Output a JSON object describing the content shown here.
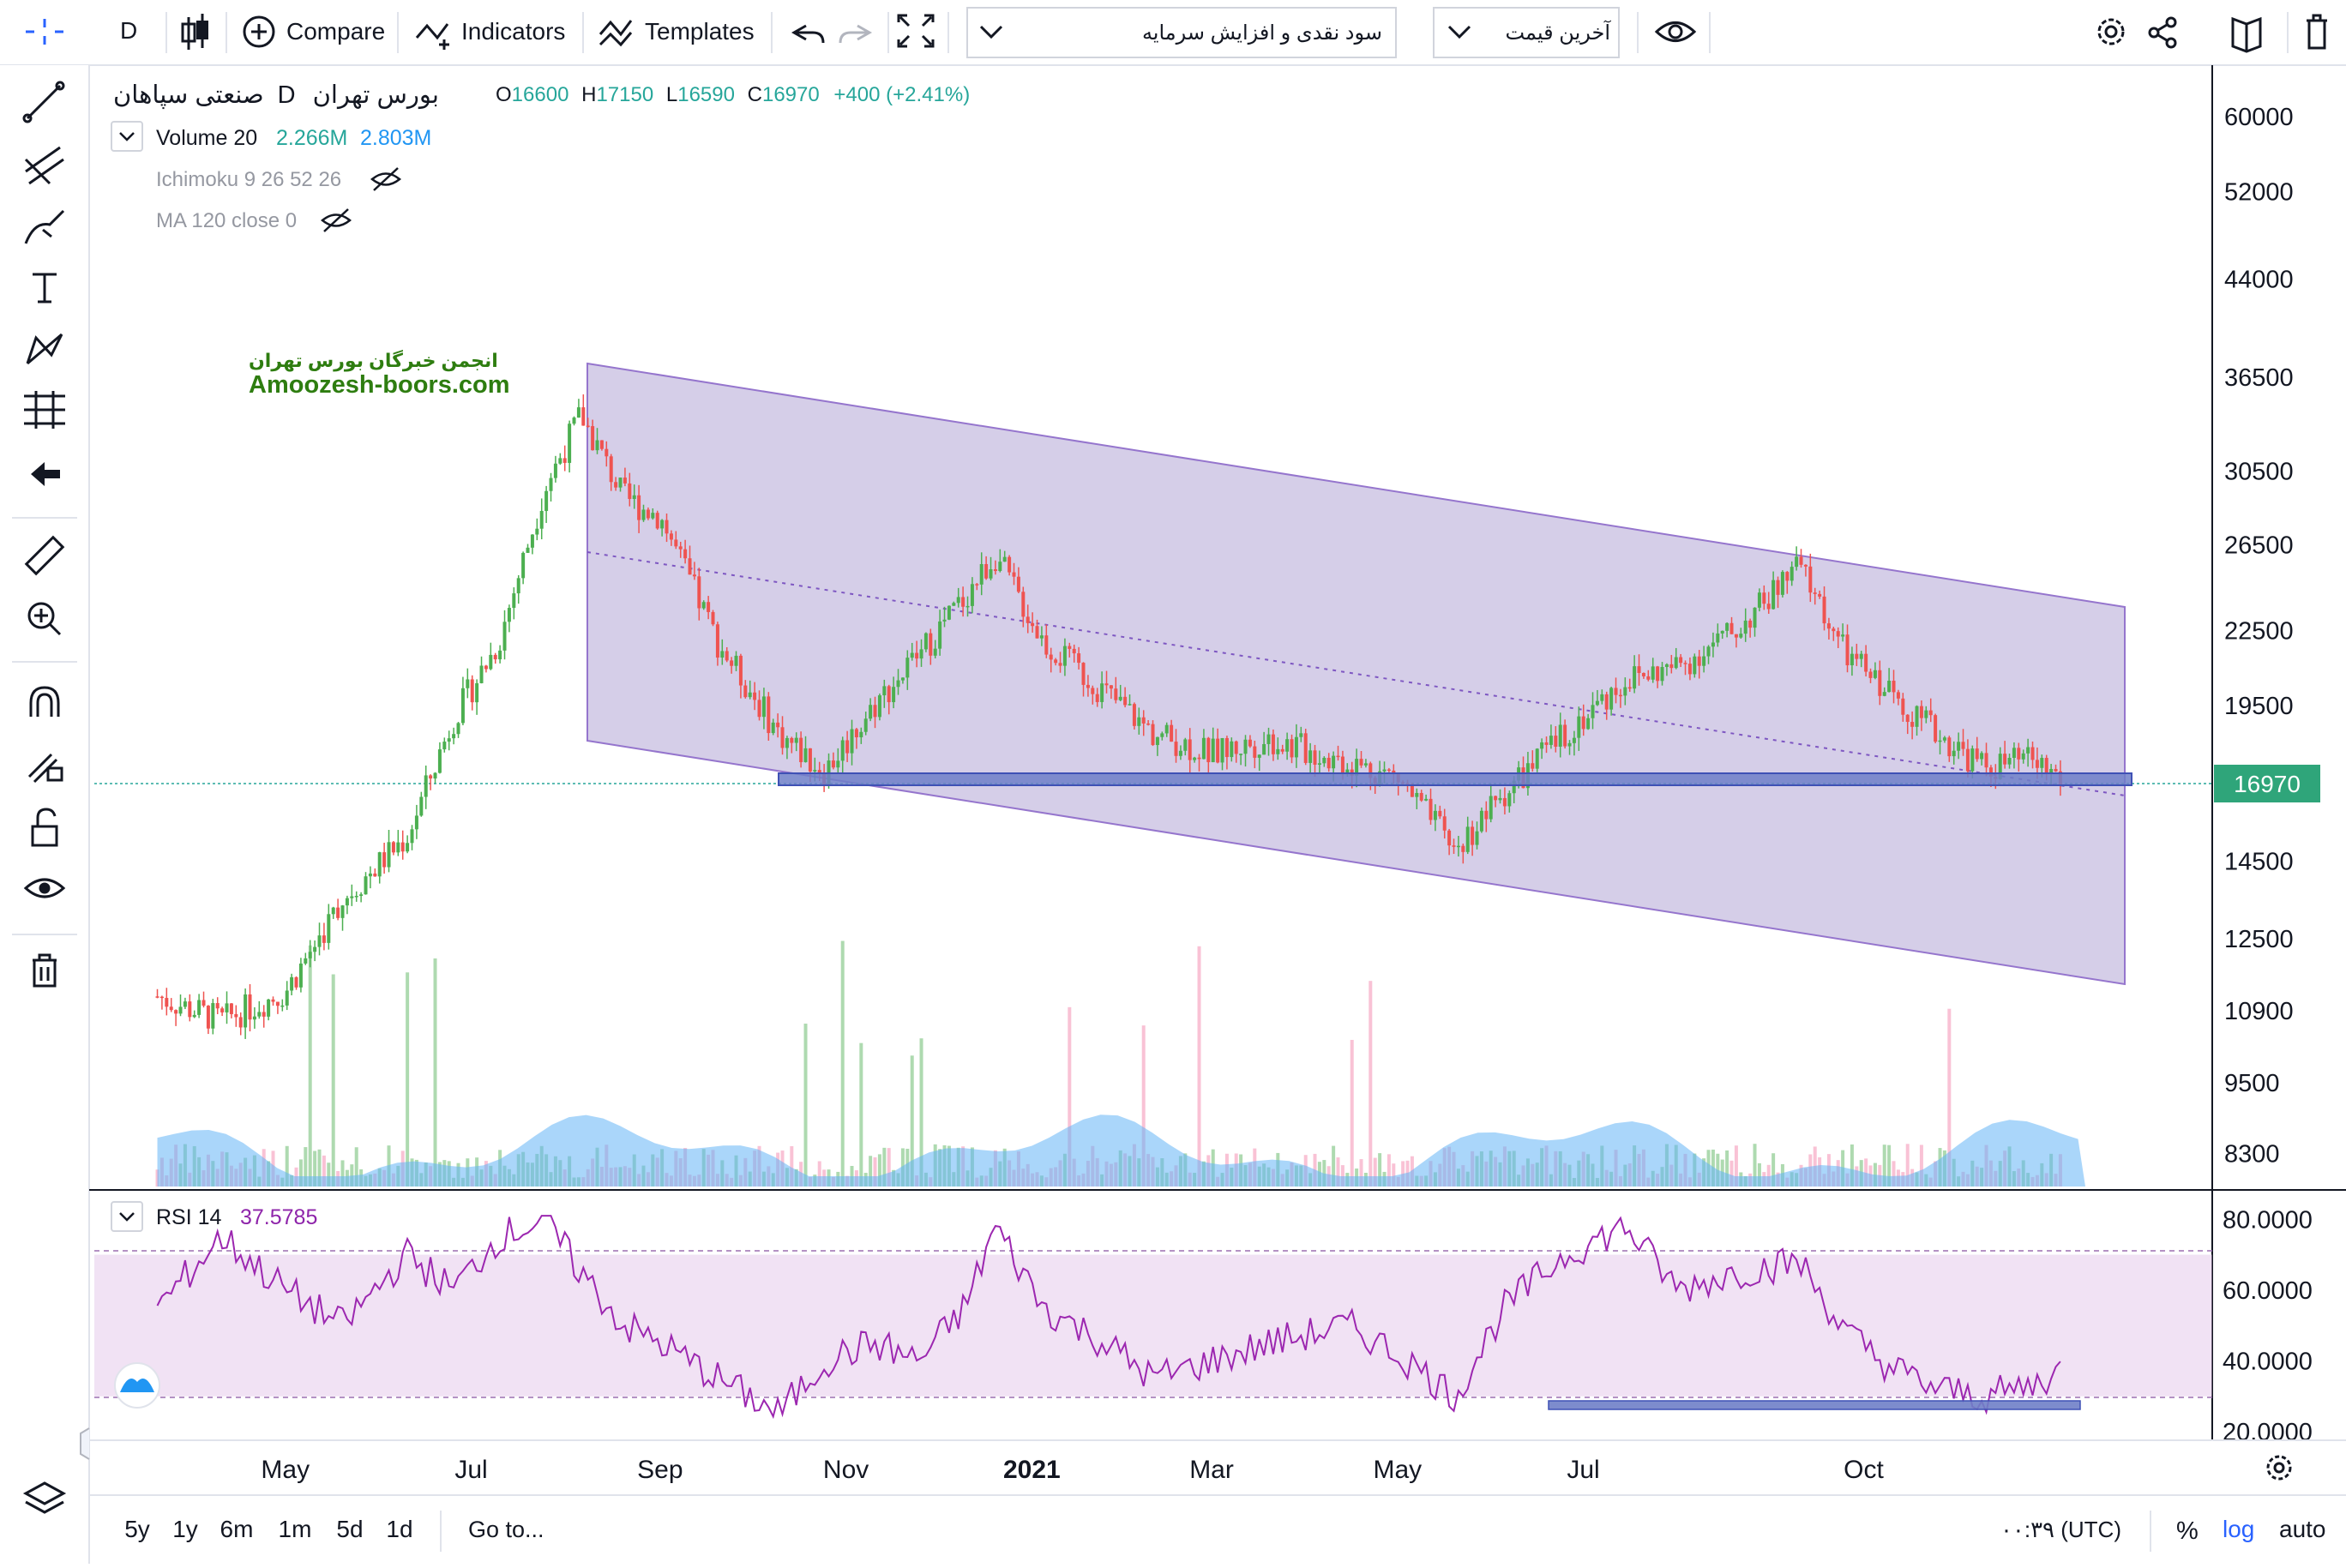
{
  "toolbar": {
    "interval": "D",
    "compare_label": "Compare",
    "indicators_label": "Indicators",
    "templates_label": "Templates",
    "symbol_search": "سود نقدی و افزایش سرمایه",
    "price_source": "آخرین قیمت"
  },
  "legend": {
    "symbol": "صنعتی سپاهان",
    "exchange": "بورس تهران",
    "interval": "D",
    "open_label": "O",
    "open": "16600",
    "high_label": "H",
    "high": "17150",
    "low_label": "L",
    "low": "16590",
    "close_label": "C",
    "close": "16970",
    "change": "+400 (+2.41%)",
    "volume_label": "Volume 20",
    "volume_value_1": "2.266M",
    "volume_value_2": "2.803M",
    "ichimoku_label": "Ichimoku 9 26 52 26",
    "ma_label": "MA 120 close 0"
  },
  "watermark": {
    "line1": "انجمن خبرگان بورس تهران",
    "line2": "Amoozesh-boors.com",
    "color": "#2e7d10"
  },
  "rsi": {
    "label": "RSI 14",
    "value": "37.5785",
    "axis_ticks": [
      "80.0000",
      "60.0000",
      "40.0000",
      "20.0000"
    ]
  },
  "price_axis": {
    "ticks": [
      "60000",
      "52000",
      "44000",
      "36500",
      "30500",
      "26500",
      "22500",
      "19500",
      "16500",
      "14500",
      "12500",
      "10900",
      "9500",
      "8300"
    ],
    "last_price": "16970"
  },
  "time_axis": {
    "labels": [
      "May",
      "Jul",
      "Sep",
      "Nov",
      "2021",
      "Mar",
      "May",
      "Jul",
      "Oct"
    ]
  },
  "bottom_bar": {
    "ranges": [
      "5y",
      "1y",
      "6m",
      "1m",
      "5d",
      "1d"
    ],
    "goto_label": "Go to...",
    "clock": "۰۰:۳۹ (UTC)",
    "percent_label": "%",
    "log_label": "log",
    "auto_label": "auto"
  },
  "colors": {
    "up": "#26a69a",
    "up_candle": "#4caf50",
    "down": "#ef5350",
    "channel_fill": "#b3a6d6",
    "support_band": "#6f7fc8",
    "rsi_line": "#9c27b0",
    "accent": "#2962ff"
  },
  "chart_data": [
    {
      "type": "line",
      "title": "",
      "description_series": "Daily price close (log scale)",
      "x": [
        "2020-03-20",
        "2020-04-10",
        "2020-05-01",
        "2020-05-20",
        "2020-06-10",
        "2020-06-25",
        "2020-07-10",
        "2020-07-25",
        "2020-08-06",
        "2020-08-20",
        "2020-09-01",
        "2020-09-20",
        "2020-10-10",
        "2020-10-25",
        "2020-11-10",
        "2020-11-25",
        "2020-12-10",
        "2020-12-20",
        "2021-01-05",
        "2021-01-25",
        "2021-02-10",
        "2021-03-01",
        "2021-03-20",
        "2021-04-15",
        "2021-05-01",
        "2021-05-20",
        "2021-06-05",
        "2021-06-25",
        "2021-07-15",
        "2021-08-01",
        "2021-08-20",
        "2021-09-10",
        "2021-09-25",
        "2021-10-10",
        "2021-10-25",
        "2021-11-10",
        "2021-11-25",
        "2021-12-05"
      ],
      "series": [
        {
          "values": [
            11200,
            10700,
            11300,
            13500,
            15200,
            19000,
            22000,
            29500,
            34000,
            29000,
            28000,
            22000,
            18500,
            17200,
            19500,
            21500,
            24000,
            26000,
            22000,
            20000,
            18500,
            17800,
            18300,
            17500,
            17000,
            14800,
            16500,
            18500,
            20500,
            21000,
            22500,
            25500,
            21500,
            20000,
            18500,
            17300,
            17600,
            16970
          ]
        }
      ],
      "ylim": [
        8000,
        62000
      ],
      "log_scale": true,
      "last_price": 16970
    },
    {
      "type": "line",
      "title": "",
      "series": [
        {
          "name": "RSI 14",
          "values": [
            55,
            75,
            60,
            50,
            70,
            60,
            75,
            80,
            65,
            50,
            45,
            35,
            25,
            40,
            45,
            40,
            55,
            78,
            55,
            45,
            35,
            40,
            45,
            50,
            42,
            30,
            55,
            70,
            78,
            60,
            65,
            68,
            48,
            38,
            32,
            30,
            33,
            37.58
          ]
        }
      ],
      "ylim": [
        20,
        82
      ],
      "bands": [
        30,
        70
      ]
    }
  ]
}
